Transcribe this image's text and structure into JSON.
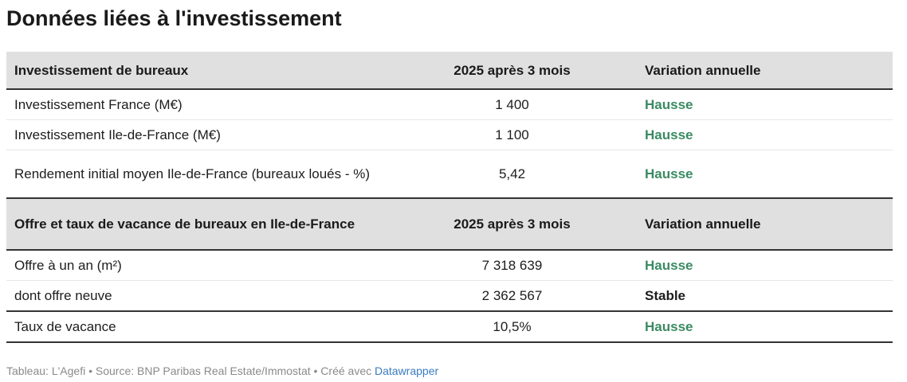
{
  "title": "Données liées à l'investissement",
  "sections": [
    {
      "header": [
        "Investissement de bureaux",
        "2025 après 3 mois",
        "Variation annuelle"
      ],
      "rows": [
        {
          "label": "Investissement France (M€)",
          "value": "1 400",
          "variation": "Hausse",
          "variation_color": "#3a8a62"
        },
        {
          "label": "Investissement Ile-de-France (M€)",
          "value": "1 100",
          "variation": "Hausse",
          "variation_color": "#3a8a62"
        },
        {
          "label": "Rendement initial moyen Ile-de-France (bureaux loués - %)",
          "value": "5,42",
          "variation": "Hausse",
          "variation_color": "#3a8a62"
        }
      ]
    },
    {
      "header": [
        "Offre et taux de vacance de bureaux en Ile-de-France",
        "2025 après 3 mois",
        "Variation annuelle"
      ],
      "rows": [
        {
          "label": "Offre à un an (m²)",
          "value": "7 318 639",
          "variation": "Hausse",
          "variation_color": "#3a8a62"
        },
        {
          "label": "dont offre neuve",
          "value": "2 362 567",
          "variation": "Stable",
          "variation_color": "#1d1d1d"
        },
        {
          "label": "Taux de vacance",
          "value": "10,5%",
          "variation": "Hausse",
          "variation_color": "#3a8a62"
        }
      ]
    }
  ],
  "chart_data": {
    "type": "table",
    "title": "Données liées à l'investissement",
    "columns": [
      "",
      "2025 après 3 mois",
      "Variation annuelle"
    ],
    "rows": [
      [
        "Investissement France (M€)",
        "1 400",
        "Hausse"
      ],
      [
        "Investissement Ile-de-France (M€)",
        "1 100",
        "Hausse"
      ],
      [
        "Rendement initial moyen Ile-de-France (bureaux loués - %)",
        "5,42",
        "Hausse"
      ],
      [
        "Offre à un an (m²)",
        "7 318 639",
        "Hausse"
      ],
      [
        "dont offre neuve",
        "2 362 567",
        "Stable"
      ],
      [
        "Taux de vacance",
        "10,5%",
        "Hausse"
      ]
    ]
  },
  "footer": {
    "text": "Tableau: L'Agefi • Source: BNP Paribas Real Estate/Immostat • Créé avec ",
    "link": "Datawrapper"
  }
}
